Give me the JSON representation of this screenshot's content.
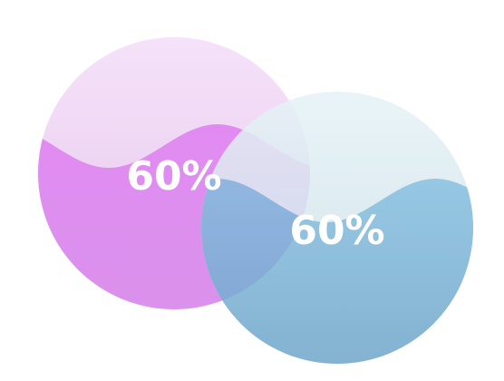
{
  "chart_data": [
    {
      "type": "liquid-fill",
      "value": 0.6,
      "label": "60%",
      "colors": {
        "top": "#f4dcf7",
        "top_shade": "#e7c6ec",
        "liquid": "#d96bec",
        "liquid_dark": "#cf76e6"
      }
    },
    {
      "type": "liquid-fill",
      "value": 0.6,
      "label": "60%",
      "colors": {
        "top": "#e4f2f6",
        "top_shade": "#cfe3ea",
        "liquid": "#72b2d8",
        "liquid_dark": "#6aa3c8"
      }
    }
  ]
}
